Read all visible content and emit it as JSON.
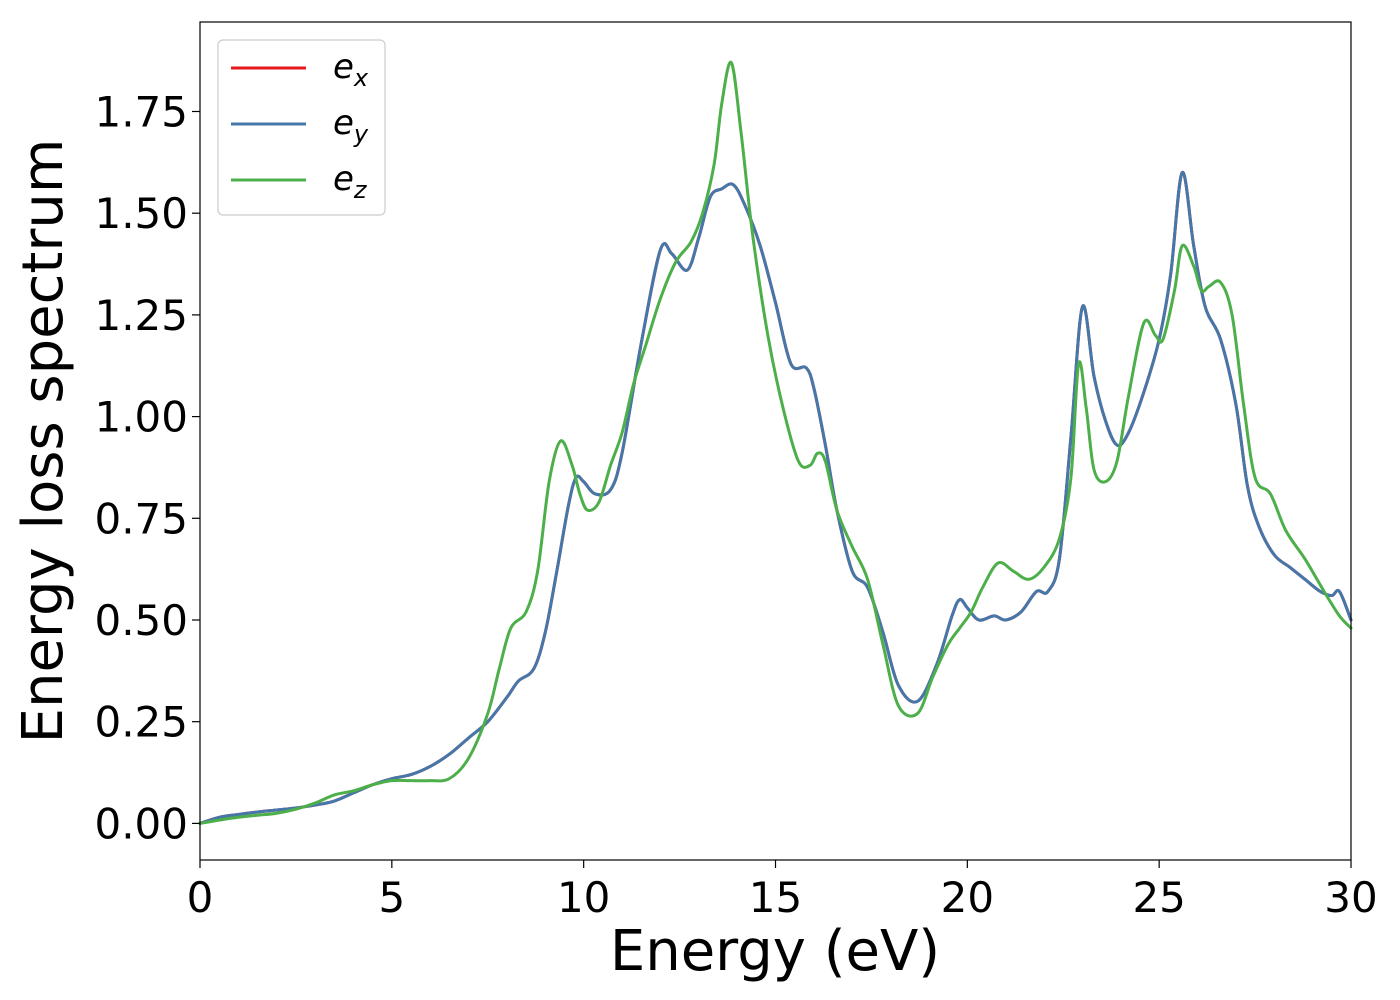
{
  "chart_data": {
    "type": "line",
    "xlabel": "Energy (eV)",
    "ylabel": "Energy loss spectrum",
    "xlim": [
      0,
      30
    ],
    "ylim": [
      -0.09,
      1.97
    ],
    "xticks": [
      0,
      5,
      10,
      15,
      20,
      25,
      30
    ],
    "xtick_labels": [
      "0",
      "5",
      "10",
      "15",
      "20",
      "25",
      "30"
    ],
    "yticks": [
      0,
      0.25,
      0.5,
      0.75,
      1.0,
      1.25,
      1.5,
      1.75
    ],
    "ytick_labels": [
      "0.00",
      "0.25",
      "0.50",
      "0.75",
      "1.00",
      "1.25",
      "1.50",
      "1.75"
    ],
    "grid": false,
    "legend_position": "top-left",
    "series": [
      {
        "name": "e_x",
        "label_base": "e",
        "label_sub": "x",
        "color": "#e41a1c",
        "x": [
          0,
          0.5,
          1,
          1.5,
          2,
          2.5,
          3,
          3.5,
          4,
          4.5,
          5,
          5.5,
          6,
          6.5,
          7,
          7.5,
          8,
          8.3,
          8.7,
          9,
          9.3,
          9.6,
          9.8,
          10,
          10.3,
          10.7,
          11,
          11.5,
          12,
          12.3,
          12.7,
          13,
          13.3,
          13.6,
          13.9,
          14.2,
          14.6,
          15,
          15.4,
          15.8,
          16,
          16.3,
          16.6,
          17,
          17.4,
          17.8,
          18.2,
          18.7,
          19.2,
          19.6,
          19.8,
          20,
          20.3,
          20.7,
          21,
          21.4,
          21.8,
          22.1,
          22.4,
          22.7,
          23,
          23.3,
          23.6,
          23.9,
          24.2,
          24.6,
          25,
          25.3,
          25.6,
          25.9,
          26.2,
          26.6,
          27,
          27.3,
          27.6,
          28,
          28.4,
          28.8,
          29.2,
          29.5,
          29.7,
          30
        ],
        "values": [
          0.0,
          0.015,
          0.022,
          0.028,
          0.033,
          0.038,
          0.045,
          0.055,
          0.075,
          0.095,
          0.11,
          0.12,
          0.14,
          0.17,
          0.21,
          0.25,
          0.31,
          0.35,
          0.38,
          0.47,
          0.62,
          0.78,
          0.85,
          0.84,
          0.81,
          0.82,
          0.91,
          1.18,
          1.41,
          1.4,
          1.36,
          1.44,
          1.54,
          1.56,
          1.57,
          1.52,
          1.42,
          1.28,
          1.13,
          1.12,
          1.07,
          0.93,
          0.77,
          0.62,
          0.58,
          0.47,
          0.34,
          0.3,
          0.39,
          0.51,
          0.55,
          0.53,
          0.5,
          0.51,
          0.5,
          0.52,
          0.57,
          0.57,
          0.65,
          0.95,
          1.27,
          1.1,
          0.99,
          0.93,
          0.96,
          1.06,
          1.19,
          1.35,
          1.6,
          1.42,
          1.27,
          1.19,
          1.03,
          0.83,
          0.73,
          0.66,
          0.63,
          0.6,
          0.57,
          0.56,
          0.57,
          0.5
        ]
      },
      {
        "name": "e_y",
        "label_base": "e",
        "label_sub": "y",
        "color": "#4477aa",
        "x": [
          0,
          0.5,
          1,
          1.5,
          2,
          2.5,
          3,
          3.5,
          4,
          4.5,
          5,
          5.5,
          6,
          6.5,
          7,
          7.5,
          8,
          8.3,
          8.7,
          9,
          9.3,
          9.6,
          9.8,
          10,
          10.3,
          10.7,
          11,
          11.5,
          12,
          12.3,
          12.7,
          13,
          13.3,
          13.6,
          13.9,
          14.2,
          14.6,
          15,
          15.4,
          15.8,
          16,
          16.3,
          16.6,
          17,
          17.4,
          17.8,
          18.2,
          18.7,
          19.2,
          19.6,
          19.8,
          20,
          20.3,
          20.7,
          21,
          21.4,
          21.8,
          22.1,
          22.4,
          22.7,
          23,
          23.3,
          23.6,
          23.9,
          24.2,
          24.6,
          25,
          25.3,
          25.6,
          25.9,
          26.2,
          26.6,
          27,
          27.3,
          27.6,
          28,
          28.4,
          28.8,
          29.2,
          29.5,
          29.7,
          30
        ],
        "values": [
          0.0,
          0.015,
          0.022,
          0.028,
          0.033,
          0.038,
          0.045,
          0.055,
          0.075,
          0.095,
          0.11,
          0.12,
          0.14,
          0.17,
          0.21,
          0.25,
          0.31,
          0.35,
          0.38,
          0.47,
          0.62,
          0.78,
          0.85,
          0.84,
          0.81,
          0.82,
          0.91,
          1.18,
          1.41,
          1.4,
          1.36,
          1.44,
          1.54,
          1.56,
          1.57,
          1.52,
          1.42,
          1.28,
          1.13,
          1.12,
          1.07,
          0.93,
          0.77,
          0.62,
          0.58,
          0.47,
          0.34,
          0.3,
          0.39,
          0.51,
          0.55,
          0.53,
          0.5,
          0.51,
          0.5,
          0.52,
          0.57,
          0.57,
          0.65,
          0.95,
          1.27,
          1.1,
          0.99,
          0.93,
          0.96,
          1.06,
          1.19,
          1.35,
          1.6,
          1.42,
          1.27,
          1.19,
          1.03,
          0.83,
          0.73,
          0.66,
          0.63,
          0.6,
          0.57,
          0.56,
          0.57,
          0.5
        ]
      },
      {
        "name": "e_z",
        "label_base": "e",
        "label_sub": "z",
        "color": "#4daf4a",
        "x": [
          0,
          0.5,
          1,
          1.5,
          2,
          2.5,
          3,
          3.5,
          4,
          4.5,
          5,
          5.5,
          6,
          6.5,
          7,
          7.5,
          7.8,
          8.1,
          8.5,
          8.8,
          9.1,
          9.4,
          9.7,
          9.9,
          10.1,
          10.4,
          10.7,
          11,
          11.3,
          11.6,
          12,
          12.4,
          12.8,
          13.1,
          13.4,
          13.6,
          13.85,
          14.1,
          14.4,
          14.8,
          15.2,
          15.6,
          15.9,
          16.1,
          16.3,
          16.6,
          17,
          17.4,
          17.8,
          18.2,
          18.7,
          19.1,
          19.5,
          19.8,
          20.1,
          20.4,
          20.8,
          21.2,
          21.6,
          22,
          22.4,
          22.7,
          22.9,
          23.1,
          23.3,
          23.6,
          23.9,
          24.2,
          24.6,
          24.9,
          25.1,
          25.4,
          25.6,
          25.9,
          26.1,
          26.3,
          26.6,
          26.9,
          27.2,
          27.5,
          27.9,
          28.3,
          28.8,
          29.3,
          29.7,
          30
        ],
        "values": [
          0.0,
          0.008,
          0.015,
          0.02,
          0.025,
          0.035,
          0.05,
          0.07,
          0.08,
          0.095,
          0.105,
          0.105,
          0.105,
          0.11,
          0.16,
          0.27,
          0.38,
          0.48,
          0.52,
          0.62,
          0.84,
          0.94,
          0.88,
          0.81,
          0.77,
          0.79,
          0.88,
          0.96,
          1.08,
          1.17,
          1.29,
          1.38,
          1.43,
          1.5,
          1.62,
          1.77,
          1.87,
          1.7,
          1.45,
          1.2,
          1.02,
          0.89,
          0.88,
          0.91,
          0.89,
          0.77,
          0.68,
          0.6,
          0.44,
          0.29,
          0.27,
          0.36,
          0.44,
          0.48,
          0.52,
          0.58,
          0.64,
          0.62,
          0.6,
          0.63,
          0.7,
          0.85,
          1.13,
          1.02,
          0.87,
          0.84,
          0.89,
          1.05,
          1.23,
          1.2,
          1.19,
          1.31,
          1.42,
          1.37,
          1.31,
          1.32,
          1.33,
          1.25,
          1.03,
          0.85,
          0.81,
          0.72,
          0.65,
          0.57,
          0.51,
          0.48
        ]
      }
    ]
  }
}
